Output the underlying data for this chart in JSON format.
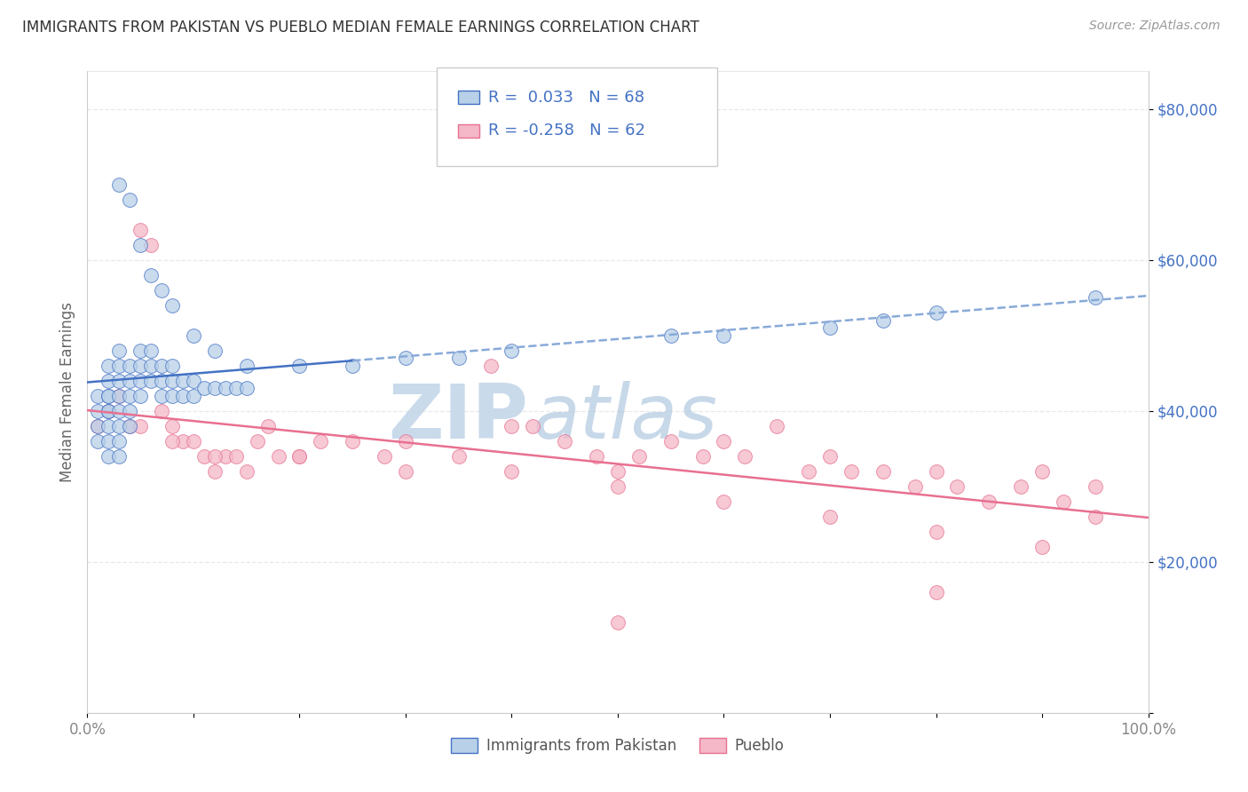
{
  "title": "IMMIGRANTS FROM PAKISTAN VS PUEBLO MEDIAN FEMALE EARNINGS CORRELATION CHART",
  "source": "Source: ZipAtlas.com",
  "ylabel": "Median Female Earnings",
  "xlim": [
    0,
    100
  ],
  "ylim": [
    0,
    85000
  ],
  "yticks": [
    0,
    20000,
    40000,
    60000,
    80000
  ],
  "ytick_labels": [
    "",
    "$20,000",
    "$40,000",
    "$60,000",
    "$80,000"
  ],
  "xticks": [
    0,
    10,
    20,
    30,
    40,
    50,
    60,
    70,
    80,
    90,
    100
  ],
  "xtick_labels_show": [
    "0.0%",
    "",
    "",
    "",
    "",
    "",
    "",
    "",
    "",
    "",
    "100.0%"
  ],
  "label1": "Immigrants from Pakistan",
  "label2": "Pueblo",
  "legend_text1": "R =  0.033   N = 68",
  "legend_text2": "R = -0.258   N = 62",
  "blue_face": "#b8d0e8",
  "blue_edge": "#4472c4",
  "pink_face": "#f4b8c8",
  "pink_edge": "#e87090",
  "blue_line_solid": "#4472c4",
  "blue_line_dash": "#88aad8",
  "pink_line": "#e87090",
  "watermark_zip_color": "#c0d4e8",
  "watermark_atlas_color": "#b0c8e0",
  "title_color": "#333333",
  "source_color": "#999999",
  "ylabel_color": "#666666",
  "ytick_color": "#4472c4",
  "xtick_color": "#888888",
  "grid_color": "#e8e8e8",
  "legend_border": "#cccccc",
  "blue_scatter_x": [
    1,
    1,
    1,
    1,
    2,
    2,
    2,
    2,
    2,
    2,
    2,
    2,
    2,
    3,
    3,
    3,
    3,
    3,
    3,
    3,
    3,
    4,
    4,
    4,
    4,
    4,
    5,
    5,
    5,
    5,
    6,
    6,
    6,
    7,
    7,
    7,
    8,
    8,
    8,
    9,
    9,
    10,
    10,
    11,
    12,
    13,
    14,
    15,
    3,
    4,
    5,
    6,
    7,
    8,
    10,
    12,
    15,
    20,
    25,
    30,
    35,
    40,
    55,
    60,
    70,
    75,
    80,
    95
  ],
  "blue_scatter_y": [
    42000,
    40000,
    38000,
    36000,
    46000,
    44000,
    42000,
    40000,
    38000,
    36000,
    34000,
    42000,
    40000,
    48000,
    46000,
    44000,
    42000,
    40000,
    38000,
    36000,
    34000,
    46000,
    44000,
    42000,
    40000,
    38000,
    48000,
    46000,
    44000,
    42000,
    48000,
    46000,
    44000,
    46000,
    44000,
    42000,
    46000,
    44000,
    42000,
    44000,
    42000,
    44000,
    42000,
    43000,
    43000,
    43000,
    43000,
    43000,
    70000,
    68000,
    62000,
    58000,
    56000,
    54000,
    50000,
    48000,
    46000,
    46000,
    46000,
    47000,
    47000,
    48000,
    50000,
    50000,
    51000,
    52000,
    53000,
    55000
  ],
  "pink_scatter_x": [
    1,
    2,
    3,
    4,
    5,
    6,
    7,
    8,
    9,
    10,
    11,
    12,
    13,
    14,
    15,
    16,
    17,
    18,
    20,
    22,
    25,
    28,
    30,
    35,
    38,
    40,
    42,
    45,
    48,
    50,
    52,
    55,
    58,
    60,
    62,
    65,
    68,
    70,
    72,
    75,
    78,
    80,
    82,
    85,
    88,
    90,
    92,
    95,
    5,
    8,
    12,
    20,
    30,
    40,
    50,
    60,
    70,
    80,
    90,
    95,
    50,
    80
  ],
  "pink_scatter_y": [
    38000,
    40000,
    42000,
    38000,
    64000,
    62000,
    40000,
    38000,
    36000,
    36000,
    34000,
    32000,
    34000,
    34000,
    32000,
    36000,
    38000,
    34000,
    34000,
    36000,
    36000,
    34000,
    36000,
    34000,
    46000,
    38000,
    38000,
    36000,
    34000,
    32000,
    34000,
    36000,
    34000,
    36000,
    34000,
    38000,
    32000,
    34000,
    32000,
    32000,
    30000,
    32000,
    30000,
    28000,
    30000,
    32000,
    28000,
    30000,
    38000,
    36000,
    34000,
    34000,
    32000,
    32000,
    30000,
    28000,
    26000,
    24000,
    22000,
    26000,
    12000,
    16000
  ]
}
